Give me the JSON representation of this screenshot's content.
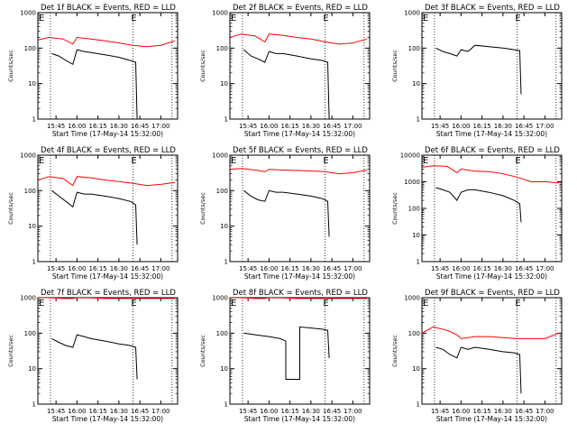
{
  "figure": {
    "x_tick_labels": [
      "15:45",
      "16:00",
      "16:15",
      "16:30",
      "16:45",
      "17:00"
    ],
    "y_tick_labels_short": [
      "1",
      "10",
      "100",
      "1000"
    ],
    "y_tick_labels_long": [
      "1",
      "10",
      "100",
      "1000",
      "10000"
    ],
    "colors": {
      "events": "#000000",
      "lld": "#ff0000",
      "axes": "#000000"
    }
  },
  "chart_data": [
    {
      "type": "line",
      "title": "Det 1f BLACK = Events, RED = LLD",
      "xlabel": "Start Time (17-May-14 15:32:00)",
      "ylabel": "Counts/sec",
      "xlim": [
        "15:32",
        "17:12"
      ],
      "ylim": [
        1,
        1000
      ],
      "y_scale": "log",
      "grid": false,
      "event_markers": [
        "15:32",
        "16:40"
      ],
      "vertical_dotted_lines": [
        "15:41",
        "16:40",
        "17:08"
      ],
      "series": [
        {
          "name": "LLD",
          "color": "#ff0000",
          "x": [
            "15:32",
            "15:40",
            "15:50",
            "15:57",
            "16:00",
            "16:10",
            "16:20",
            "16:30",
            "16:40",
            "16:50",
            "17:00",
            "17:10"
          ],
          "y": [
            170,
            200,
            180,
            130,
            200,
            180,
            160,
            140,
            120,
            110,
            120,
            160
          ]
        },
        {
          "name": "Events",
          "color": "#000000",
          "x": [
            "15:42",
            "15:47",
            "15:52",
            "15:57",
            "16:00",
            "16:05",
            "16:10",
            "16:20",
            "16:30",
            "16:38",
            "16:42",
            "16:43",
            "16:43"
          ],
          "y": [
            70,
            60,
            45,
            35,
            90,
            80,
            75,
            65,
            55,
            45,
            40,
            1,
            1
          ]
        }
      ]
    },
    {
      "type": "line",
      "title": "Det 2f BLACK = Events, RED = LLD",
      "xlabel": "Start Time (17-May-14 15:32:00)",
      "ylabel": "Counts/sec",
      "xlim": [
        "15:32",
        "17:12"
      ],
      "ylim": [
        1,
        1000
      ],
      "y_scale": "log",
      "grid": false,
      "event_markers": [
        "15:32",
        "16:40"
      ],
      "vertical_dotted_lines": [
        "15:41",
        "16:40",
        "17:08"
      ],
      "series": [
        {
          "name": "LLD",
          "color": "#ff0000",
          "x": [
            "15:32",
            "15:40",
            "15:50",
            "15:57",
            "16:00",
            "16:10",
            "16:20",
            "16:30",
            "16:40",
            "16:50",
            "17:00",
            "17:10"
          ],
          "y": [
            200,
            250,
            220,
            150,
            250,
            230,
            200,
            180,
            150,
            130,
            140,
            180
          ]
        },
        {
          "name": "Events",
          "color": "#000000",
          "x": [
            "15:42",
            "15:47",
            "15:52",
            "15:57",
            "16:00",
            "16:05",
            "16:10",
            "16:20",
            "16:30",
            "16:38",
            "16:42",
            "16:43",
            "16:43"
          ],
          "y": [
            90,
            60,
            50,
            40,
            80,
            70,
            70,
            60,
            50,
            45,
            40,
            1,
            1
          ]
        }
      ]
    },
    {
      "type": "line",
      "title": "Det 3f BLACK = Events, RED = LLD",
      "xlabel": "Start Time (17-May-14 15:32:00)",
      "ylabel": "Counts/sec",
      "xlim": [
        "15:32",
        "17:12"
      ],
      "ylim": [
        1,
        1000
      ],
      "y_scale": "log",
      "grid": false,
      "event_markers": [
        "15:32",
        "16:40"
      ],
      "vertical_dotted_lines": [
        "15:41",
        "16:40",
        "17:08"
      ],
      "series": [
        {
          "name": "Events",
          "color": "#000000",
          "x": [
            "15:42",
            "15:47",
            "15:52",
            "15:57",
            "16:00",
            "16:05",
            "16:10",
            "16:20",
            "16:30",
            "16:38",
            "16:42",
            "16:43",
            "16:43"
          ],
          "y": [
            100,
            80,
            70,
            60,
            90,
            80,
            120,
            110,
            100,
            90,
            85,
            5,
            5
          ]
        }
      ]
    },
    {
      "type": "line",
      "title": "Det 4f BLACK = Events, RED = LLD",
      "xlabel": "Start Time (17-May-14 15:32:00)",
      "ylabel": "Counts/sec",
      "xlim": [
        "15:32",
        "17:12"
      ],
      "ylim": [
        1,
        1000
      ],
      "y_scale": "log",
      "grid": false,
      "event_markers": [
        "15:32",
        "16:40"
      ],
      "vertical_dotted_lines": [
        "15:41",
        "16:40",
        "17:08"
      ],
      "series": [
        {
          "name": "LLD",
          "color": "#ff0000",
          "x": [
            "15:32",
            "15:40",
            "15:50",
            "15:57",
            "16:00",
            "16:10",
            "16:20",
            "16:30",
            "16:40",
            "16:50",
            "17:00",
            "17:10"
          ],
          "y": [
            200,
            250,
            220,
            140,
            250,
            230,
            200,
            180,
            160,
            140,
            150,
            170
          ]
        },
        {
          "name": "Events",
          "color": "#000000",
          "x": [
            "15:42",
            "15:47",
            "15:52",
            "15:57",
            "16:00",
            "16:05",
            "16:10",
            "16:20",
            "16:30",
            "16:38",
            "16:42",
            "16:43",
            "16:43"
          ],
          "y": [
            100,
            70,
            50,
            35,
            90,
            80,
            80,
            70,
            60,
            50,
            40,
            3,
            3
          ]
        }
      ]
    },
    {
      "type": "line",
      "title": "Det 5f BLACK = Events, RED = LLD",
      "xlabel": "Start Time (17-May-14 15:32:00)",
      "ylabel": "Counts/sec",
      "xlim": [
        "15:32",
        "17:12"
      ],
      "ylim": [
        1,
        1000
      ],
      "y_scale": "log",
      "grid": false,
      "event_markers": [
        "15:32",
        "16:40"
      ],
      "vertical_dotted_lines": [
        "15:41",
        "16:40",
        "17:08"
      ],
      "series": [
        {
          "name": "LLD",
          "color": "#ff0000",
          "x": [
            "15:32",
            "15:40",
            "15:50",
            "15:57",
            "16:00",
            "16:10",
            "16:20",
            "16:30",
            "16:40",
            "16:50",
            "17:00",
            "17:10"
          ],
          "y": [
            400,
            420,
            380,
            340,
            400,
            380,
            370,
            360,
            340,
            300,
            320,
            380
          ]
        },
        {
          "name": "Events",
          "color": "#000000",
          "x": [
            "15:42",
            "15:47",
            "15:52",
            "15:57",
            "16:00",
            "16:05",
            "16:10",
            "16:20",
            "16:30",
            "16:38",
            "16:42",
            "16:43",
            "16:43"
          ],
          "y": [
            100,
            70,
            55,
            50,
            100,
            90,
            90,
            80,
            70,
            60,
            50,
            5,
            5
          ]
        }
      ]
    },
    {
      "type": "line",
      "title": "Det 6f BLACK = Events, RED = LLD",
      "xlabel": "Start Time (17-May-14 15:32:00)",
      "ylabel": "Counts/sec",
      "xlim": [
        "15:32",
        "17:12"
      ],
      "ylim": [
        1,
        10000
      ],
      "y_scale": "log",
      "grid": false,
      "event_markers": [
        "15:32",
        "16:40"
      ],
      "vertical_dotted_lines": [
        "15:41",
        "16:40",
        "17:08"
      ],
      "series": [
        {
          "name": "LLD",
          "color": "#ff0000",
          "x": [
            "15:32",
            "15:40",
            "15:50",
            "15:57",
            "16:00",
            "16:10",
            "16:20",
            "16:30",
            "16:40",
            "16:50",
            "17:00",
            "17:10"
          ],
          "y": [
            3500,
            4000,
            3800,
            2200,
            3000,
            2500,
            2400,
            2000,
            1500,
            1000,
            1000,
            900
          ]
        },
        {
          "name": "Events",
          "color": "#000000",
          "x": [
            "15:42",
            "15:47",
            "15:52",
            "15:57",
            "16:00",
            "16:05",
            "16:10",
            "16:20",
            "16:30",
            "16:38",
            "16:42",
            "16:43",
            "16:43"
          ],
          "y": [
            600,
            500,
            400,
            200,
            400,
            500,
            500,
            400,
            300,
            200,
            150,
            30,
            30
          ]
        }
      ]
    },
    {
      "type": "line",
      "title": "Det 7f BLACK = Events, RED = LLD",
      "xlabel": "Start Time (17-May-14 15:32:00)",
      "ylabel": "Counts/sec",
      "xlim": [
        "15:32",
        "17:12"
      ],
      "ylim": [
        1,
        1000
      ],
      "y_scale": "log",
      "grid": false,
      "event_markers": [
        "15:32",
        "16:40"
      ],
      "vertical_dotted_lines": [
        "15:41",
        "16:40",
        "17:08"
      ],
      "series": [
        {
          "name": "LLD",
          "color": "#ff0000",
          "x": [
            "15:32",
            "15:40",
            "15:50",
            "15:57",
            "16:00",
            "16:10",
            "16:20",
            "16:30",
            "16:40",
            "16:50",
            "17:00",
            "17:10"
          ],
          "y": [
            1000,
            1000,
            950,
            950,
            1000,
            980,
            950,
            950,
            950,
            950,
            950,
            950
          ]
        },
        {
          "name": "Events",
          "color": "#000000",
          "x": [
            "15:42",
            "15:47",
            "15:52",
            "15:57",
            "16:00",
            "16:05",
            "16:10",
            "16:20",
            "16:30",
            "16:38",
            "16:42",
            "16:43",
            "16:43"
          ],
          "y": [
            70,
            55,
            45,
            40,
            90,
            80,
            70,
            60,
            50,
            45,
            40,
            5,
            5
          ]
        }
      ]
    },
    {
      "type": "line",
      "title": "Det 8f BLACK = Events, RED = LLD",
      "xlabel": "Start Time (17-May-14 15:32:00)",
      "ylabel": "Counts/sec",
      "xlim": [
        "15:32",
        "17:12"
      ],
      "ylim": [
        1,
        1000
      ],
      "y_scale": "log",
      "grid": false,
      "event_markers": [
        "15:32",
        "16:40"
      ],
      "vertical_dotted_lines": [
        "15:41",
        "16:40",
        "17:08"
      ],
      "series": [
        {
          "name": "LLD",
          "color": "#ff0000",
          "x": [
            "15:32",
            "15:40",
            "15:50",
            "15:57",
            "16:00",
            "16:10",
            "16:20",
            "16:30",
            "16:40",
            "16:50",
            "17:00",
            "17:10"
          ],
          "y": [
            1000,
            1000,
            950,
            950,
            1000,
            980,
            950,
            950,
            950,
            950,
            950,
            950
          ]
        },
        {
          "name": "Events",
          "color": "#000000",
          "x": [
            "15:42",
            "15:50",
            "16:00",
            "16:08",
            "16:12",
            "16:12",
            "16:22",
            "16:22",
            "16:30",
            "16:38",
            "16:42",
            "16:43",
            "16:43"
          ],
          "y": [
            100,
            90,
            80,
            70,
            60,
            5,
            5,
            150,
            140,
            130,
            120,
            20,
            20
          ]
        }
      ]
    },
    {
      "type": "line",
      "title": "Det 9f BLACK = Events, RED = LLD",
      "xlabel": "Start Time (17-May-14 15:32:00)",
      "ylabel": "Counts/sec",
      "xlim": [
        "15:32",
        "17:12"
      ],
      "ylim": [
        1,
        1000
      ],
      "y_scale": "log",
      "grid": false,
      "event_markers": [
        "15:32",
        "16:40"
      ],
      "vertical_dotted_lines": [
        "15:41",
        "16:40",
        "17:08"
      ],
      "series": [
        {
          "name": "LLD",
          "color": "#ff0000",
          "x": [
            "15:32",
            "15:40",
            "15:50",
            "15:57",
            "16:00",
            "16:10",
            "16:20",
            "16:30",
            "16:40",
            "16:50",
            "17:00",
            "17:10"
          ],
          "y": [
            100,
            150,
            120,
            90,
            70,
            80,
            80,
            75,
            70,
            70,
            70,
            100
          ]
        },
        {
          "name": "Events",
          "color": "#000000",
          "x": [
            "15:42",
            "15:47",
            "15:52",
            "15:57",
            "16:00",
            "16:05",
            "16:10",
            "16:20",
            "16:30",
            "16:38",
            "16:42",
            "16:43",
            "16:43"
          ],
          "y": [
            40,
            35,
            25,
            20,
            40,
            35,
            40,
            35,
            30,
            28,
            25,
            2,
            2
          ]
        }
      ]
    }
  ]
}
